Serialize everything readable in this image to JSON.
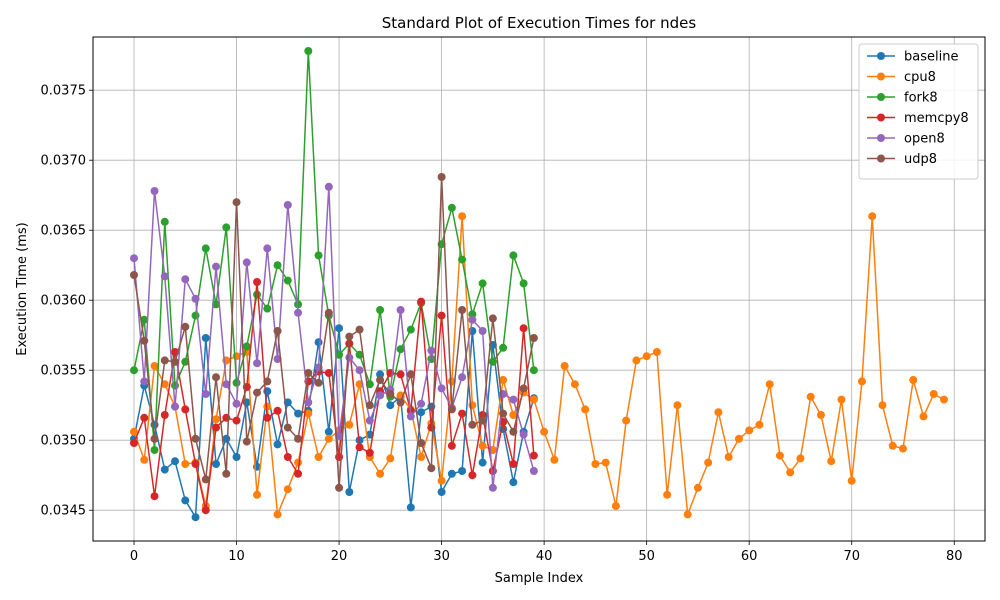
{
  "chart_data": {
    "type": "line",
    "title": "Standard Plot of Execution Times for ndes",
    "xlabel": "Sample Index",
    "ylabel": "Execution Time (ms)",
    "xlim": [
      -4,
      83
    ],
    "ylim": [
      0.03428,
      0.03788
    ],
    "xticks": [
      0,
      10,
      20,
      30,
      40,
      50,
      60,
      70,
      80
    ],
    "xtick_labels": [
      "0",
      "10",
      "20",
      "30",
      "40",
      "50",
      "60",
      "70",
      "80"
    ],
    "yticks": [
      0.0345,
      0.035,
      0.0355,
      0.036,
      0.0365,
      0.037,
      0.0375
    ],
    "ytick_labels": [
      "0.0345",
      "0.0350",
      "0.0355",
      "0.0360",
      "0.0365",
      "0.0370",
      "0.0375"
    ],
    "grid": true,
    "legend_position": "top-right",
    "series": [
      {
        "name": "baseline",
        "color": "#1f77b4",
        "values": [
          0.03501,
          0.03539,
          0.03511,
          0.03479,
          0.03485,
          0.03457,
          0.03445,
          0.03573,
          0.03483,
          0.03501,
          0.03488,
          0.03527,
          0.03481,
          0.03535,
          0.03497,
          0.03527,
          0.03519,
          0.03521,
          0.0357,
          0.03506,
          0.0358,
          0.03463,
          0.035,
          0.03504,
          0.03547,
          0.03525,
          0.03531,
          0.03452,
          0.0352,
          0.03524,
          0.03463,
          0.03476,
          0.03478,
          0.03578,
          0.03484,
          0.03568,
          0.03508,
          0.0347,
          0.03506,
          0.0353
        ]
      },
      {
        "name": "cpu8",
        "color": "#ff7f0e",
        "values": [
          0.03506,
          0.03486,
          0.03553,
          0.0354,
          0.03524,
          0.03483,
          0.03484,
          0.03453,
          0.03515,
          0.03557,
          0.0356,
          0.03563,
          0.03461,
          0.03524,
          0.03447,
          0.03465,
          0.03484,
          0.03519,
          0.03488,
          0.03501,
          0.03507,
          0.03511,
          0.0354,
          0.03488,
          0.03476,
          0.03487,
          0.03532,
          0.03522,
          0.03488,
          0.03512,
          0.03471,
          0.03542,
          0.0366,
          0.03525,
          0.03496,
          0.03493,
          0.03543,
          0.03518,
          0.03534,
          0.03529,
          0.03506,
          0.03486,
          0.03553,
          0.0354,
          0.03522,
          0.03483,
          0.03484,
          0.03453,
          0.03514,
          0.03557,
          0.0356,
          0.03563,
          0.03461,
          0.03525,
          0.03447,
          0.03466,
          0.03484,
          0.0352,
          0.03488,
          0.03501,
          0.03507,
          0.03511,
          0.0354,
          0.03489,
          0.03477,
          0.03487,
          0.03531,
          0.03518,
          0.03485,
          0.03529,
          0.03471,
          0.03542,
          0.0366,
          0.03525,
          0.03496,
          0.03494,
          0.03543,
          0.03517,
          0.03533,
          0.03529
        ]
      },
      {
        "name": "fork8",
        "color": "#2ca02c",
        "values": [
          0.0355,
          0.03586,
          0.03493,
          0.03656,
          0.03539,
          0.03556,
          0.03589,
          0.03637,
          0.03597,
          0.03652,
          0.03541,
          0.03567,
          0.03604,
          0.03594,
          0.03625,
          0.03614,
          0.03597,
          0.03778,
          0.03632,
          0.03589,
          0.03561,
          0.03569,
          0.03561,
          0.0354,
          0.03593,
          0.03531,
          0.03565,
          0.03579,
          0.03598,
          0.03558,
          0.0364,
          0.03666,
          0.03629,
          0.0359,
          0.03612,
          0.03556,
          0.03566,
          0.03632,
          0.03612,
          0.0355
        ]
      },
      {
        "name": "memcpy8",
        "color": "#d62728",
        "values": [
          0.03498,
          0.03516,
          0.0346,
          0.03518,
          0.03563,
          0.03522,
          0.03483,
          0.0345,
          0.03509,
          0.03516,
          0.03514,
          0.03538,
          0.03613,
          0.03516,
          0.03521,
          0.03488,
          0.03476,
          0.03542,
          0.03549,
          0.03548,
          0.03488,
          0.03569,
          0.03495,
          0.03491,
          0.03535,
          0.03548,
          0.03547,
          0.03521,
          0.03599,
          0.03509,
          0.03589,
          0.03496,
          0.03519,
          0.03475,
          0.03518,
          0.03478,
          0.03513,
          0.03483,
          0.0358,
          0.03489
        ]
      },
      {
        "name": "open8",
        "color": "#9467bd",
        "values": [
          0.0363,
          0.03542,
          0.03678,
          0.03617,
          0.03524,
          0.03615,
          0.03601,
          0.03533,
          0.03624,
          0.0354,
          0.03526,
          0.03627,
          0.03555,
          0.03637,
          0.03558,
          0.03668,
          0.03591,
          0.03527,
          0.03552,
          0.03681,
          0.03503,
          0.03559,
          0.0355,
          0.03514,
          0.03532,
          0.03536,
          0.03593,
          0.03517,
          0.03526,
          0.03564,
          0.03537,
          0.03523,
          0.03545,
          0.03586,
          0.03578,
          0.03466,
          0.03533,
          0.03529,
          0.03504,
          0.03478
        ]
      },
      {
        "name": "udp8",
        "color": "#8c564b",
        "values": [
          0.03618,
          0.03571,
          0.03501,
          0.03557,
          0.03556,
          0.03581,
          0.03501,
          0.03472,
          0.03545,
          0.03476,
          0.0367,
          0.03499,
          0.03534,
          0.03542,
          0.03578,
          0.03509,
          0.03501,
          0.03548,
          0.03541,
          0.03591,
          0.03466,
          0.03574,
          0.03579,
          0.03525,
          0.03543,
          0.03533,
          0.03527,
          0.03547,
          0.03498,
          0.0348,
          0.03688,
          0.03522,
          0.03593,
          0.03511,
          0.03514,
          0.03587,
          0.03519,
          0.03506,
          0.03537,
          0.03573
        ]
      }
    ]
  }
}
